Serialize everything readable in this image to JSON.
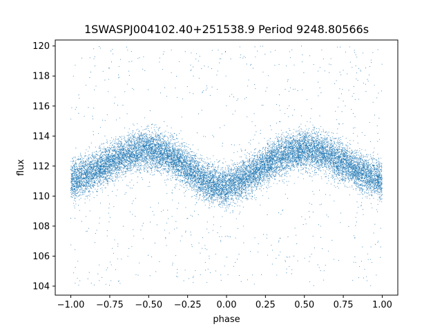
{
  "chart_data": {
    "type": "scatter",
    "title": "1SWASPJ004102.40+251538.9 Period 9248.80566s",
    "xlabel": "phase",
    "ylabel": "flux",
    "xlim": [
      -1.1,
      1.1
    ],
    "ylim": [
      103.4,
      120.4
    ],
    "x_ticks": [
      -1.0,
      -0.75,
      -0.5,
      -0.25,
      0.0,
      0.25,
      0.5,
      0.75,
      1.0
    ],
    "x_tick_labels": [
      "−1.00",
      "−0.75",
      "−0.50",
      "−0.25",
      "0.00",
      "0.25",
      "0.50",
      "0.75",
      "1.00"
    ],
    "y_ticks": [
      104,
      106,
      108,
      110,
      112,
      114,
      116,
      118,
      120
    ],
    "y_tick_labels": [
      "104",
      "106",
      "108",
      "110",
      "112",
      "114",
      "116",
      "118",
      "120"
    ],
    "grid": false,
    "legend": "none",
    "point_color": "#1f77b4",
    "series": [
      {
        "x": [
          -1.0,
          -0.875,
          -0.75,
          -0.625,
          -0.5,
          -0.375,
          -0.25,
          -0.125,
          0.0,
          0.125,
          0.25,
          0.375,
          0.5,
          0.625,
          0.75,
          0.875,
          1.0
        ],
        "y": [
          111.0,
          111.5,
          112.2,
          112.9,
          113.1,
          112.8,
          111.8,
          110.9,
          110.6,
          111.2,
          112.1,
          112.8,
          113.1,
          112.9,
          112.2,
          111.5,
          111.0
        ],
        "band_halfwidth": 1.6,
        "outlier_range": [
          104,
          120
        ]
      }
    ]
  }
}
